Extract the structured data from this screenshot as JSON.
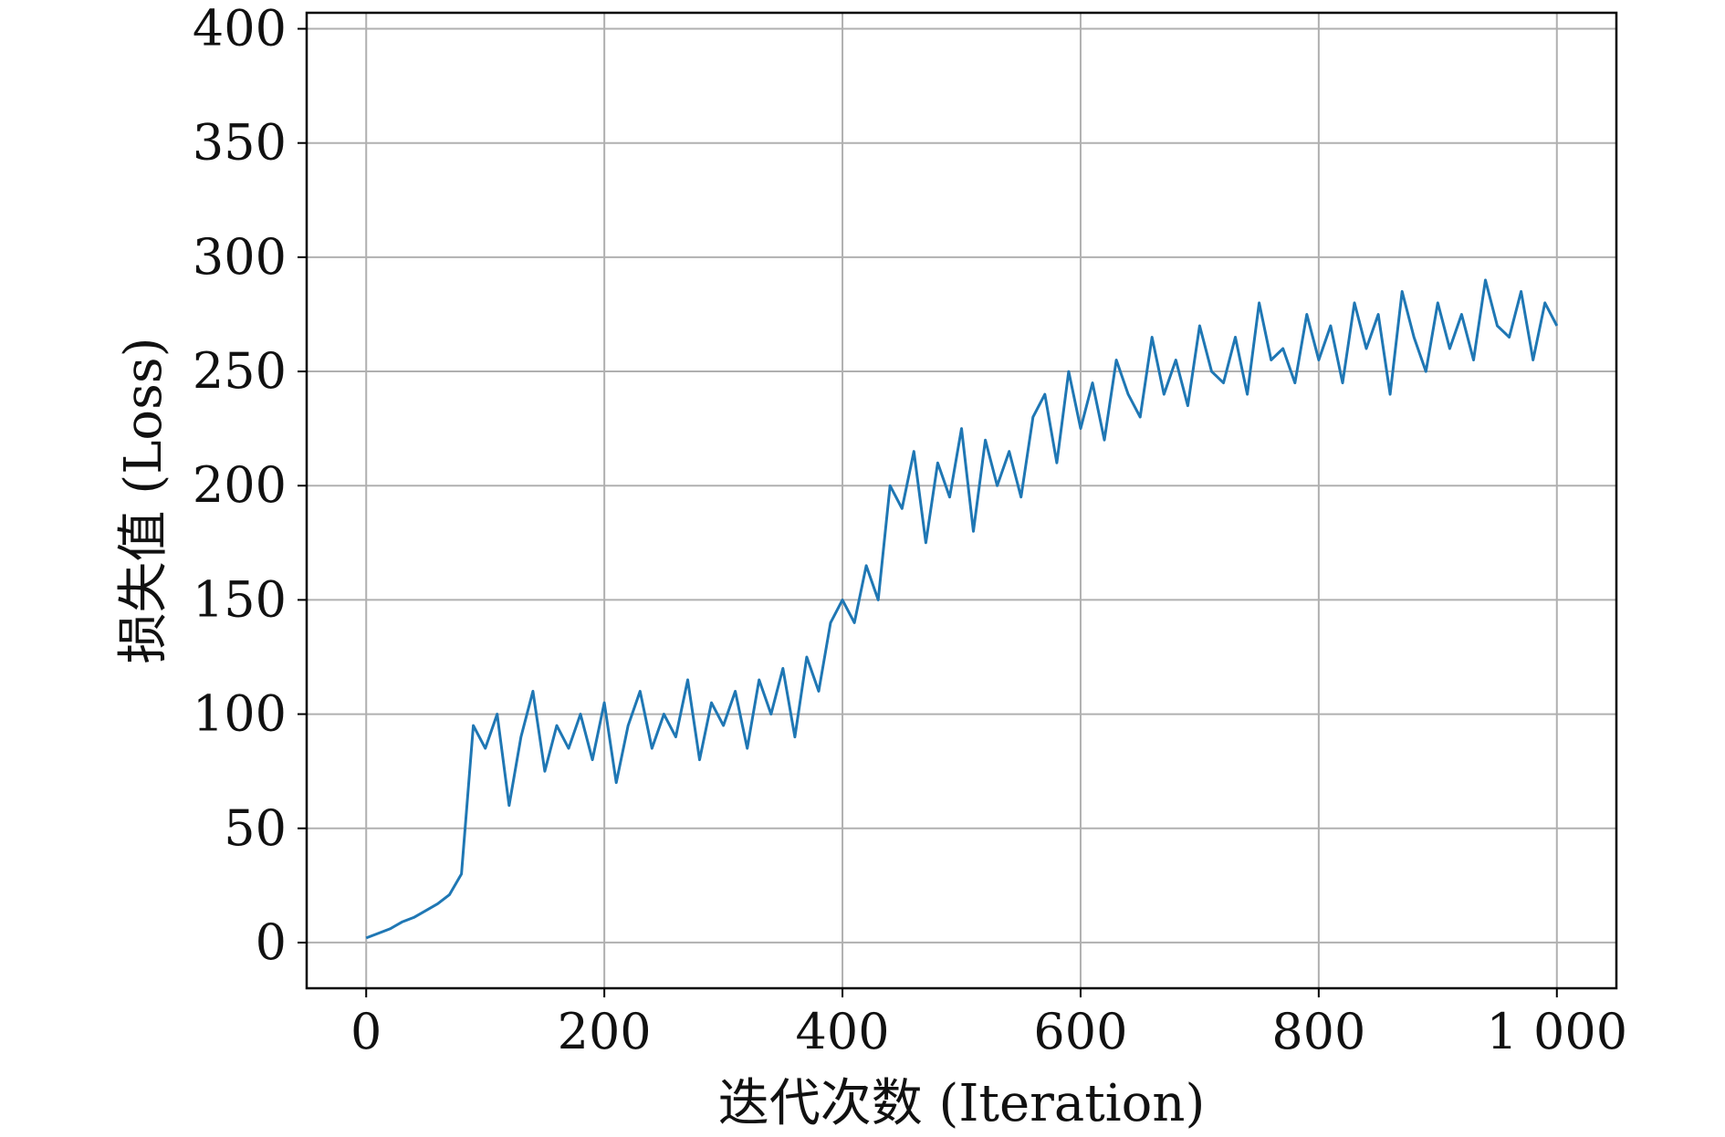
{
  "chart_data": {
    "type": "line",
    "title": "",
    "xlabel": "迭代次数 (Iteration)",
    "ylabel": "损失值 (Loss)",
    "xlim": [
      -50,
      1050
    ],
    "ylim": [
      -20,
      407
    ],
    "xticks": [
      0,
      200,
      400,
      600,
      800,
      1000
    ],
    "xtick_labels": [
      "0",
      "200",
      "400",
      "600",
      "800",
      "1 000"
    ],
    "yticks": [
      0,
      50,
      100,
      150,
      200,
      250,
      300,
      350,
      400
    ],
    "ytick_labels": [
      "0",
      "50",
      "100",
      "150",
      "200",
      "250",
      "300",
      "350",
      "400"
    ],
    "grid": true,
    "legend": "none",
    "series": [
      {
        "color": "#1f77b4",
        "x": [
          0,
          10,
          20,
          30,
          40,
          50,
          60,
          70,
          80,
          90,
          100,
          110,
          120,
          130,
          140,
          150,
          160,
          170,
          180,
          190,
          200,
          210,
          220,
          230,
          240,
          250,
          260,
          270,
          280,
          290,
          300,
          310,
          320,
          330,
          340,
          350,
          360,
          370,
          380,
          390,
          400,
          410,
          420,
          430,
          440,
          450,
          460,
          470,
          480,
          490,
          500,
          510,
          520,
          530,
          540,
          550,
          560,
          570,
          580,
          590,
          600,
          610,
          620,
          630,
          640,
          650,
          660,
          670,
          680,
          690,
          700,
          710,
          720,
          730,
          740,
          750,
          760,
          770,
          780,
          790,
          800,
          810,
          820,
          830,
          840,
          850,
          860,
          870,
          880,
          890,
          900,
          910,
          920,
          930,
          940,
          950,
          960,
          970,
          980,
          990,
          1000
        ],
        "y": [
          2,
          4,
          6,
          9,
          11,
          14,
          17,
          21,
          30,
          95,
          85,
          100,
          60,
          90,
          110,
          75,
          95,
          85,
          100,
          80,
          105,
          70,
          95,
          110,
          85,
          100,
          90,
          115,
          80,
          105,
          95,
          110,
          85,
          115,
          100,
          120,
          90,
          125,
          110,
          140,
          150,
          140,
          165,
          150,
          200,
          190,
          215,
          175,
          210,
          195,
          225,
          180,
          220,
          200,
          215,
          195,
          230,
          240,
          210,
          250,
          225,
          245,
          220,
          255,
          240,
          230,
          265,
          240,
          255,
          235,
          270,
          250,
          245,
          265,
          240,
          280,
          255,
          260,
          245,
          275,
          255,
          270,
          245,
          280,
          260,
          275,
          240,
          285,
          265,
          250,
          280,
          260,
          275,
          255,
          290,
          270,
          265,
          285,
          255,
          280,
          270
        ]
      }
    ]
  }
}
